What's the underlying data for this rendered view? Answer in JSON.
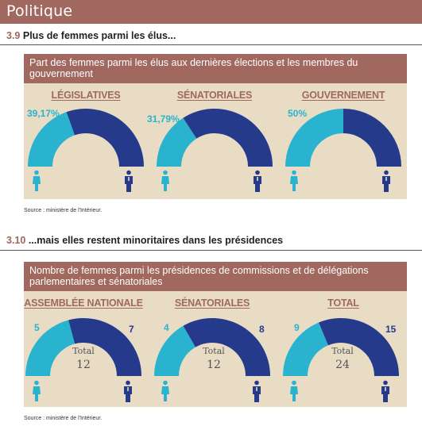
{
  "header": {
    "title": "Politique"
  },
  "section1": {
    "number": "3.9",
    "title": "Plus de femmes parmi les élus...",
    "panel_title": "Part des femmes parmi les élus aux dernières élections et les membres du gouvernement",
    "source": "Source : ministère de l'Intérieur."
  },
  "section2": {
    "number": "3.10",
    "title": "...mais elles restent minoritaires dans les présidences",
    "panel_title": "Nombre de femmes parmi les présidences de commissions et de délégations parlementaires et sénatoriales",
    "source": "Source : ministère de l'Intérieur.",
    "total_label": "Total"
  },
  "colors": {
    "women": "#2ab3cf",
    "men": "#253a8a",
    "accent": "#a0685e",
    "panel": "#e8dcc5"
  },
  "chart_data": [
    {
      "type": "pie",
      "subtype": "half-donut",
      "title": "Part des femmes parmi les élus aux dernières élections et les membres du gouvernement",
      "categories": [
        "LÉGISLATIVES",
        "SÉNATORIALES",
        "GOUVERNEMENT"
      ],
      "series": [
        {
          "values": [
            39.17,
            31.79,
            50
          ]
        }
      ],
      "labels": [
        "39,17%",
        "31,79%",
        "50%"
      ]
    },
    {
      "type": "pie",
      "subtype": "half-donut",
      "title": "Nombre de femmes parmi les présidences de commissions et de délégations parlementaires et sénatoriales",
      "categories": [
        "ASSEMBLÉE NATIONALE",
        "SÉNATORIALES",
        "TOTAL"
      ],
      "women": [
        5,
        4,
        9
      ],
      "men": [
        7,
        8,
        15
      ],
      "totals": [
        12,
        12,
        24
      ]
    }
  ]
}
